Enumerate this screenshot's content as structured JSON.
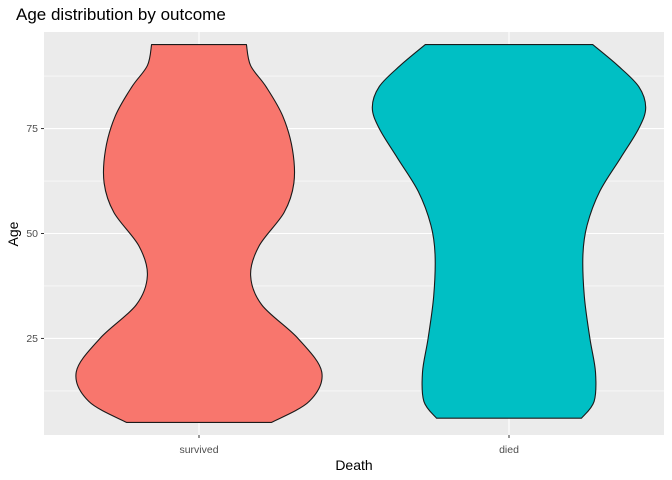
{
  "chart_data": {
    "type": "violin",
    "title": "Age distribution by outcome",
    "xlabel": "Death",
    "ylabel": "Age",
    "categories": [
      "survived",
      "died"
    ],
    "ylim": [
      2,
      98
    ],
    "yticks": [
      25,
      50,
      75
    ],
    "grid": true,
    "legend": "none",
    "colors": {
      "survived": "#F8766D",
      "died": "#00BFC4",
      "panel_background": "#EBEBEB",
      "grid": "#FFFFFF",
      "outline": "#1A1A1A"
    },
    "violins": [
      {
        "category": "survived",
        "age_range": [
          5,
          95
        ],
        "density_profile": [
          {
            "age": 5,
            "width": 0.52
          },
          {
            "age": 10,
            "width": 0.79
          },
          {
            "age": 17,
            "width": 0.88
          },
          {
            "age": 25,
            "width": 0.71
          },
          {
            "age": 33,
            "width": 0.45
          },
          {
            "age": 40,
            "width": 0.37
          },
          {
            "age": 47,
            "width": 0.43
          },
          {
            "age": 55,
            "width": 0.61
          },
          {
            "age": 62,
            "width": 0.68
          },
          {
            "age": 70,
            "width": 0.67
          },
          {
            "age": 78,
            "width": 0.6
          },
          {
            "age": 85,
            "width": 0.48
          },
          {
            "age": 90,
            "width": 0.37
          },
          {
            "age": 95,
            "width": 0.34
          }
        ]
      },
      {
        "category": "died",
        "age_range": [
          6,
          95
        ],
        "density_profile": [
          {
            "age": 6,
            "width": 0.52
          },
          {
            "age": 10,
            "width": 0.61
          },
          {
            "age": 17,
            "width": 0.62
          },
          {
            "age": 25,
            "width": 0.58
          },
          {
            "age": 35,
            "width": 0.54
          },
          {
            "age": 45,
            "width": 0.53
          },
          {
            "age": 52,
            "width": 0.56
          },
          {
            "age": 60,
            "width": 0.65
          },
          {
            "age": 68,
            "width": 0.8
          },
          {
            "age": 75,
            "width": 0.93
          },
          {
            "age": 80,
            "width": 0.98
          },
          {
            "age": 85,
            "width": 0.93
          },
          {
            "age": 90,
            "width": 0.78
          },
          {
            "age": 95,
            "width": 0.6
          }
        ]
      }
    ]
  }
}
